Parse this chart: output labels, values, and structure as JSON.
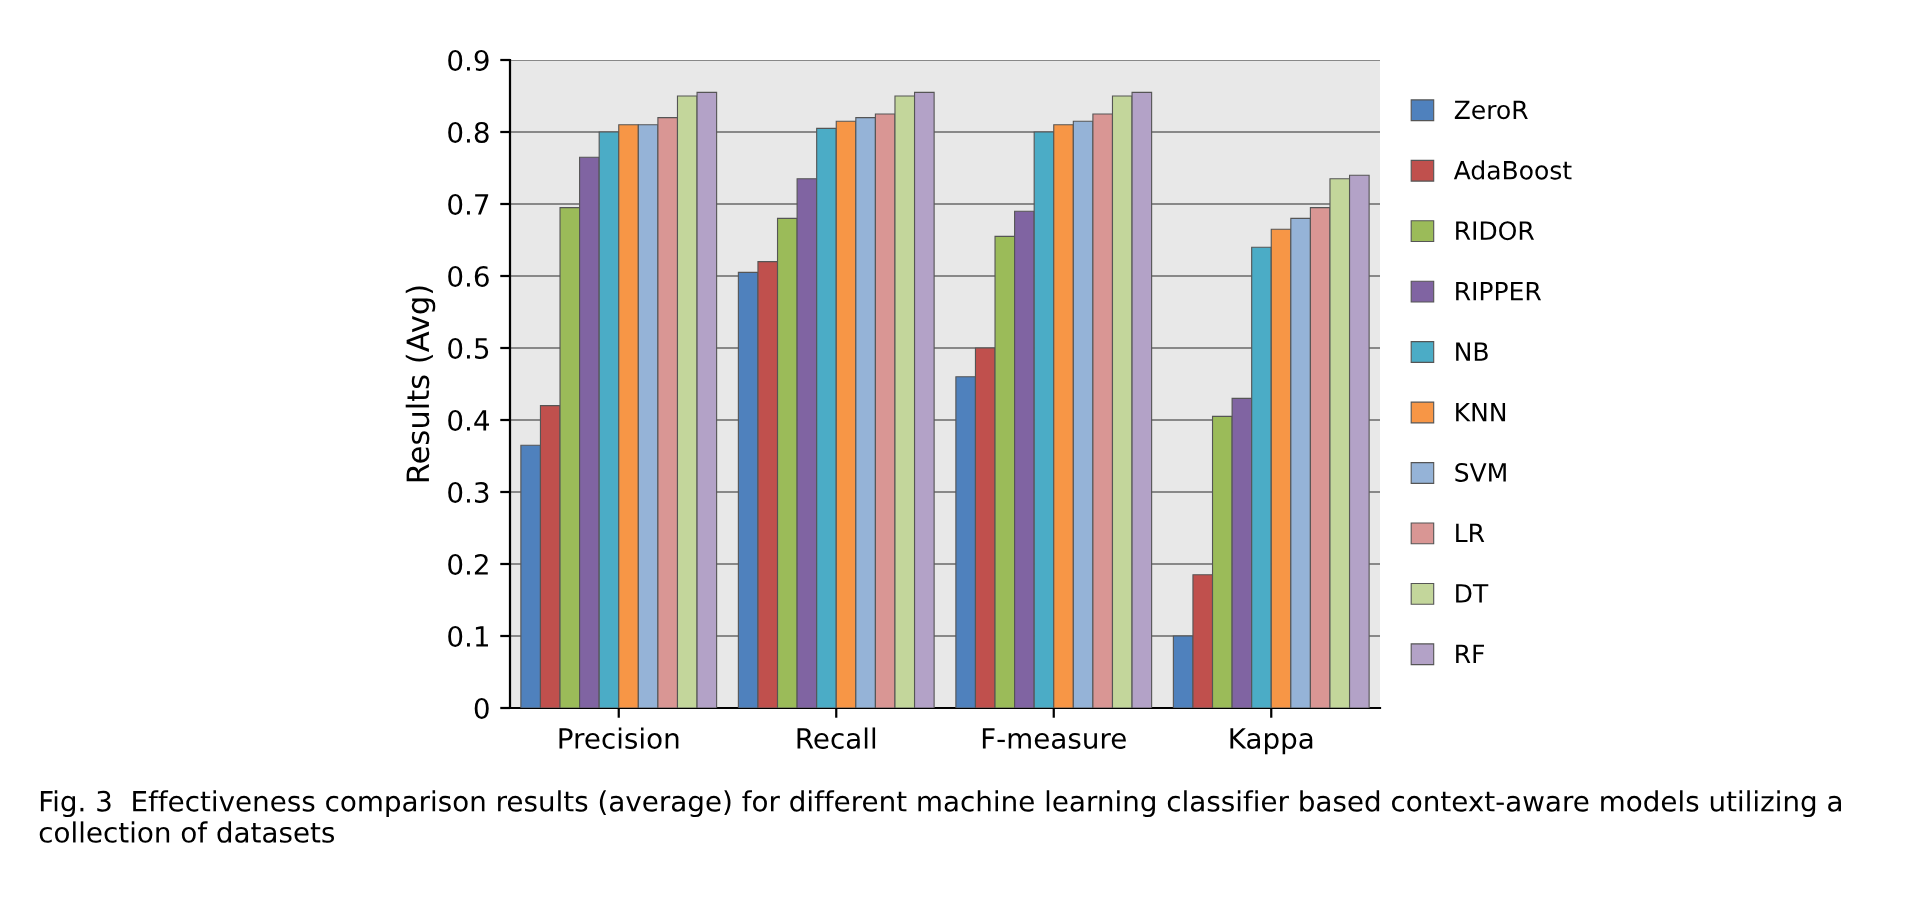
{
  "chart_data": {
    "type": "bar",
    "ylabel": "Results (Avg)",
    "categories": [
      "Precision",
      "Recall",
      "F-measure",
      "Kappa"
    ],
    "series": [
      {
        "name": "ZeroR",
        "color": "#4f81bd",
        "values": [
          0.365,
          0.605,
          0.46,
          0.1
        ]
      },
      {
        "name": "AdaBoost",
        "color": "#c0504d",
        "values": [
          0.42,
          0.62,
          0.5,
          0.185
        ]
      },
      {
        "name": "RIDOR",
        "color": "#9bbb59",
        "values": [
          0.695,
          0.68,
          0.655,
          0.405
        ]
      },
      {
        "name": "RIPPER",
        "color": "#8064a2",
        "values": [
          0.765,
          0.735,
          0.69,
          0.43
        ]
      },
      {
        "name": "NB",
        "color": "#4bacc6",
        "values": [
          0.8,
          0.805,
          0.8,
          0.64
        ]
      },
      {
        "name": "KNN",
        "color": "#f79646",
        "values": [
          0.81,
          0.815,
          0.81,
          0.665
        ]
      },
      {
        "name": "SVM",
        "color": "#95b3d7",
        "values": [
          0.81,
          0.82,
          0.815,
          0.68
        ]
      },
      {
        "name": "LR",
        "color": "#d99694",
        "values": [
          0.82,
          0.825,
          0.825,
          0.695
        ]
      },
      {
        "name": "DT",
        "color": "#c3d69b",
        "values": [
          0.85,
          0.85,
          0.85,
          0.735
        ]
      },
      {
        "name": "RF",
        "color": "#b3a2c7",
        "values": [
          0.855,
          0.855,
          0.855,
          0.74
        ]
      }
    ],
    "ylim": [
      0,
      0.9
    ],
    "yticks": [
      0,
      0.1,
      0.2,
      0.3,
      0.4,
      0.5,
      0.6,
      0.7,
      0.8,
      0.9
    ],
    "grid": "y",
    "legend": "right",
    "annotations": [
      "Fig. 3  Effectiveness comparison results (average) for different machine learning classifier based context-aware models utilizing a collection of datasets"
    ]
  }
}
